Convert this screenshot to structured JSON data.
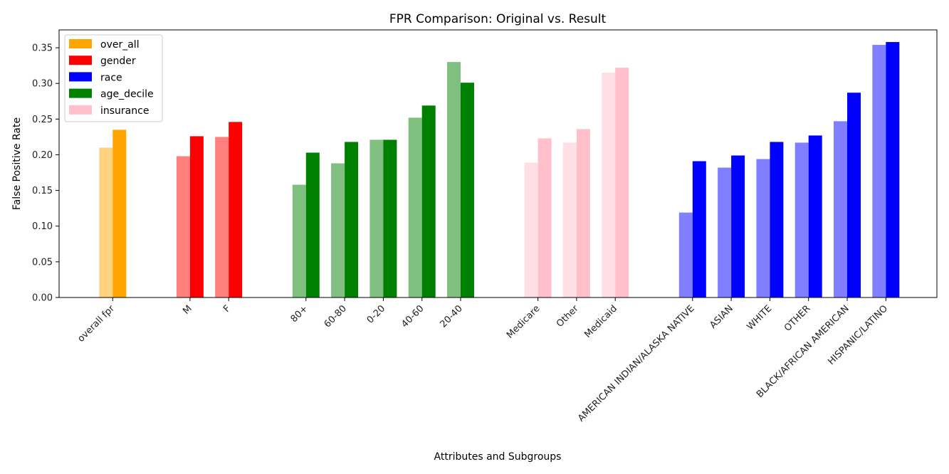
{
  "chart_data": {
    "type": "bar",
    "title": "FPR Comparison: Original vs. Result",
    "xlabel": "Attributes and Subgroups",
    "ylabel": "False Positive Rate",
    "ylim": [
      0,
      0.375
    ],
    "yticks": [
      "0.00",
      "0.05",
      "0.10",
      "0.15",
      "0.20",
      "0.25",
      "0.30",
      "0.35"
    ],
    "grid": false,
    "legend_position": "top-left",
    "legend": [
      {
        "name": "over_all",
        "color": "#FFA500"
      },
      {
        "name": "gender",
        "color": "#FF0000"
      },
      {
        "name": "race",
        "color": "#0000FF"
      },
      {
        "name": "age_decile",
        "color": "#008000"
      },
      {
        "name": "insurance",
        "color": "#FFC0CB"
      }
    ],
    "groups": [
      {
        "name": "over_all",
        "color": "#FFA500",
        "categories": [
          {
            "label": "overall fpr",
            "original": 0.21,
            "result": 0.235
          }
        ]
      },
      {
        "name": "gender",
        "color": "#FF0000",
        "categories": [
          {
            "label": "M",
            "original": 0.198,
            "result": 0.226
          },
          {
            "label": "F",
            "original": 0.225,
            "result": 0.246
          }
        ]
      },
      {
        "name": "age_decile",
        "color": "#008000",
        "categories": [
          {
            "label": "80+",
            "original": 0.158,
            "result": 0.203
          },
          {
            "label": "60-80",
            "original": 0.188,
            "result": 0.218
          },
          {
            "label": "0-20",
            "original": 0.221,
            "result": 0.221
          },
          {
            "label": "40-60",
            "original": 0.252,
            "result": 0.269
          },
          {
            "label": "20-40",
            "original": 0.33,
            "result": 0.301
          }
        ]
      },
      {
        "name": "insurance",
        "color": "#FFC0CB",
        "categories": [
          {
            "label": "Medicare",
            "original": 0.189,
            "result": 0.223
          },
          {
            "label": "Other",
            "original": 0.217,
            "result": 0.236
          },
          {
            "label": "Medicaid",
            "original": 0.315,
            "result": 0.322
          }
        ]
      },
      {
        "name": "race",
        "color": "#0000FF",
        "categories": [
          {
            "label": "AMERICAN INDIAN/ALASKA NATIVE",
            "original": 0.119,
            "result": 0.191
          },
          {
            "label": "ASIAN",
            "original": 0.182,
            "result": 0.199
          },
          {
            "label": "WHITE",
            "original": 0.194,
            "result": 0.218
          },
          {
            "label": "OTHER",
            "original": 0.217,
            "result": 0.227
          },
          {
            "label": "BLACK/AFRICAN AMERICAN",
            "original": 0.247,
            "result": 0.287
          },
          {
            "label": "HISPANIC/LATINO",
            "original": 0.354,
            "result": 0.358
          }
        ]
      }
    ]
  }
}
